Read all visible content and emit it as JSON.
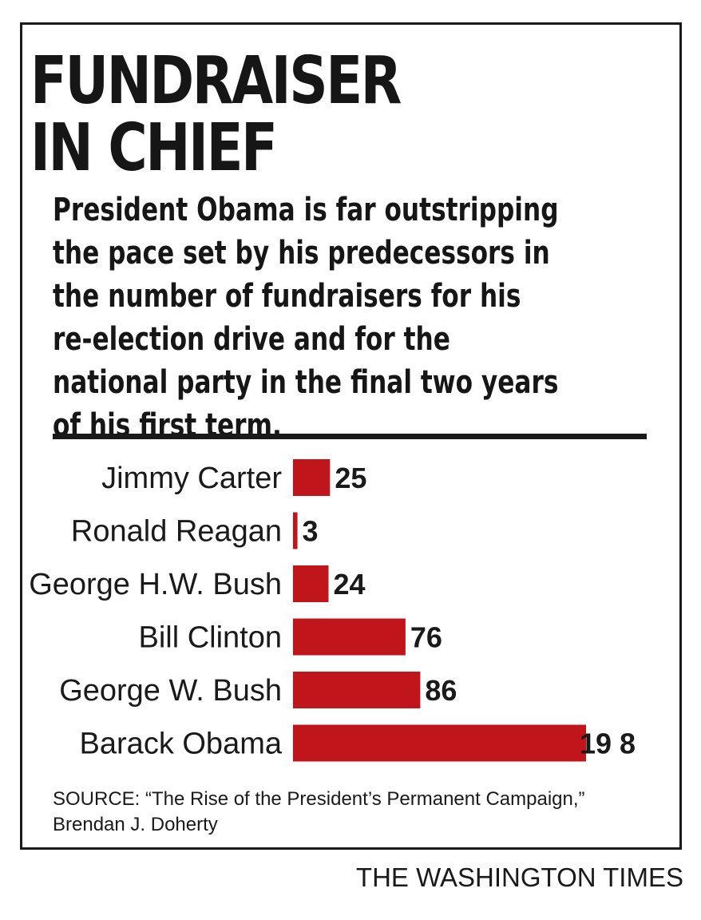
{
  "chart_data": {
    "type": "bar",
    "orientation": "horizontal",
    "title_lines": [
      "FUNDRAISER",
      "IN CHIEF"
    ],
    "subtitle_lines": [
      "President Obama is far outstripping",
      "the pace set by his predecessors in",
      "the number of fundraisers for his",
      "re-election drive and for the",
      "national party in the final two years",
      "of his first term."
    ],
    "categories": [
      "Jimmy Carter",
      "Ronald Reagan",
      "George H.W. Bush",
      "Bill Clinton",
      "George W. Bush",
      "Barack Obama"
    ],
    "values": [
      25,
      3,
      24,
      76,
      86,
      198
    ],
    "value_labels": [
      "25",
      "3",
      "24",
      "76",
      "86",
      "19 8"
    ],
    "bar_color": "#c0151b",
    "xlim": [
      0,
      198
    ],
    "grid": false,
    "legend": "none"
  },
  "source_lines": [
    "SOURCE: “The Rise of the President’s Permanent Campaign,”",
    "Brendan J. Doherty"
  ],
  "publisher": "THE WASHINGTON TIMES"
}
